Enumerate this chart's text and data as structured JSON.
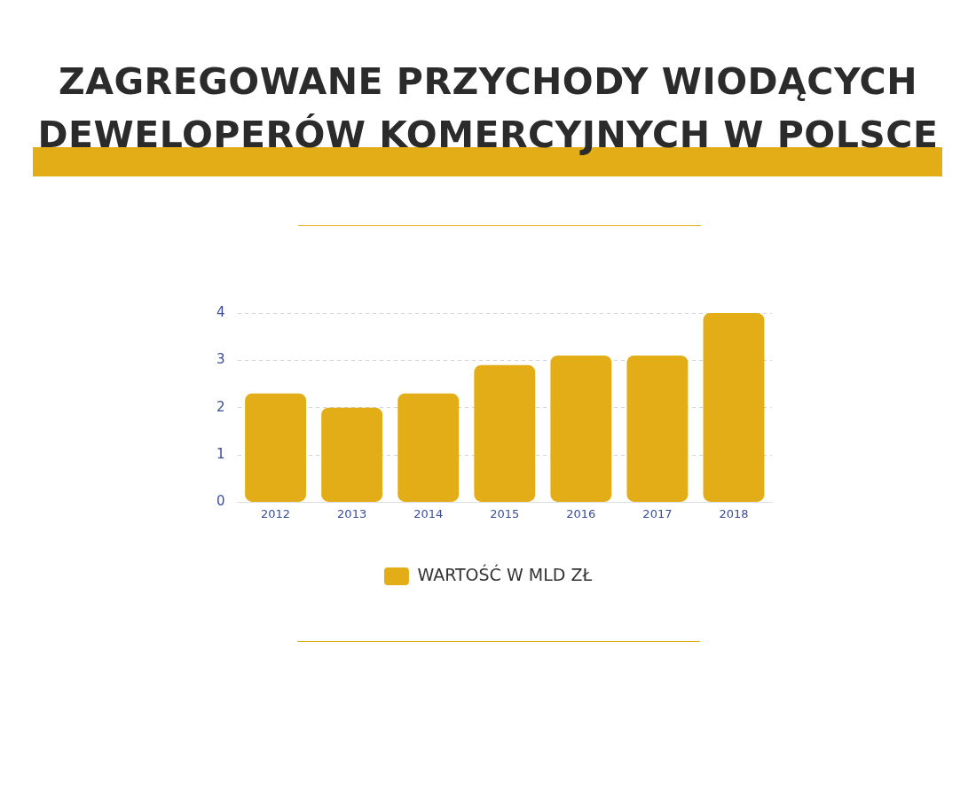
{
  "chart_data": {
    "type": "bar",
    "title": "ZAGREGOWANE PRZYCHODY WIODĄCYCH DEWELOPERÓW KOMERCYJNYCH W POLSCE",
    "categories": [
      "2012",
      "2013",
      "2014",
      "2015",
      "2016",
      "2017",
      "2018"
    ],
    "series": [
      {
        "name": "WARTOŚĆ W MLD ZŁ",
        "color": "#e2ad17",
        "values": [
          2.3,
          2.0,
          2.3,
          2.9,
          3.1,
          3.1,
          4.0
        ]
      }
    ],
    "ylim": [
      0,
      4
    ],
    "yticks": [
      0,
      1,
      2,
      3,
      4
    ],
    "grid": "y",
    "legend": "bottom"
  }
}
